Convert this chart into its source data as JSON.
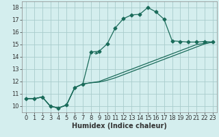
{
  "xlabel": "Humidex (Indice chaleur)",
  "bg_color": "#d4eeee",
  "grid_color": "#a8cccc",
  "line_color": "#1a6b5a",
  "xlim": [
    -0.5,
    23.5
  ],
  "ylim": [
    9.5,
    18.5
  ],
  "xticks": [
    0,
    1,
    2,
    3,
    4,
    5,
    6,
    7,
    8,
    9,
    10,
    11,
    12,
    13,
    14,
    15,
    16,
    17,
    18,
    19,
    20,
    21,
    22,
    23
  ],
  "yticks": [
    10,
    11,
    12,
    13,
    14,
    15,
    16,
    17,
    18
  ],
  "curve1_x": [
    0,
    1,
    2,
    3,
    4,
    5,
    6,
    7,
    8,
    9,
    10,
    11,
    12,
    13,
    14,
    15,
    16,
    17,
    18,
    19,
    20,
    21,
    22,
    23
  ],
  "curve1_y": [
    10.6,
    10.6,
    10.75,
    10.0,
    9.85,
    10.1,
    11.5,
    11.8,
    14.4,
    14.45,
    15.05,
    16.35,
    17.1,
    17.4,
    17.45,
    18.0,
    17.65,
    17.05,
    15.3,
    15.25,
    15.2,
    15.2,
    15.25,
    15.2
  ],
  "curve2_x": [
    0,
    1,
    2,
    3,
    4,
    5,
    6,
    7,
    8,
    9,
    10,
    11,
    12,
    13,
    14,
    15,
    16,
    17,
    18,
    19,
    20,
    21,
    22,
    23
  ],
  "curve2_y": [
    10.6,
    10.6,
    10.75,
    10.0,
    9.85,
    10.1,
    11.5,
    11.8,
    11.9,
    11.95,
    12.1,
    12.3,
    12.55,
    12.8,
    13.05,
    13.3,
    13.55,
    13.8,
    14.05,
    14.3,
    14.55,
    14.8,
    15.05,
    15.2
  ],
  "curve3_x": [
    0,
    1,
    2,
    3,
    4,
    5,
    6,
    7,
    8,
    9,
    10,
    11,
    12,
    13,
    14,
    15,
    16,
    17,
    18,
    19,
    20,
    21,
    22,
    23
  ],
  "curve3_y": [
    10.6,
    10.6,
    10.75,
    10.0,
    9.85,
    10.1,
    11.5,
    11.8,
    11.9,
    12.0,
    12.25,
    12.5,
    12.75,
    13.0,
    13.25,
    13.5,
    13.75,
    14.0,
    14.25,
    14.5,
    14.75,
    15.0,
    15.1,
    15.2
  ],
  "font_size_label": 7,
  "font_size_tick": 6
}
